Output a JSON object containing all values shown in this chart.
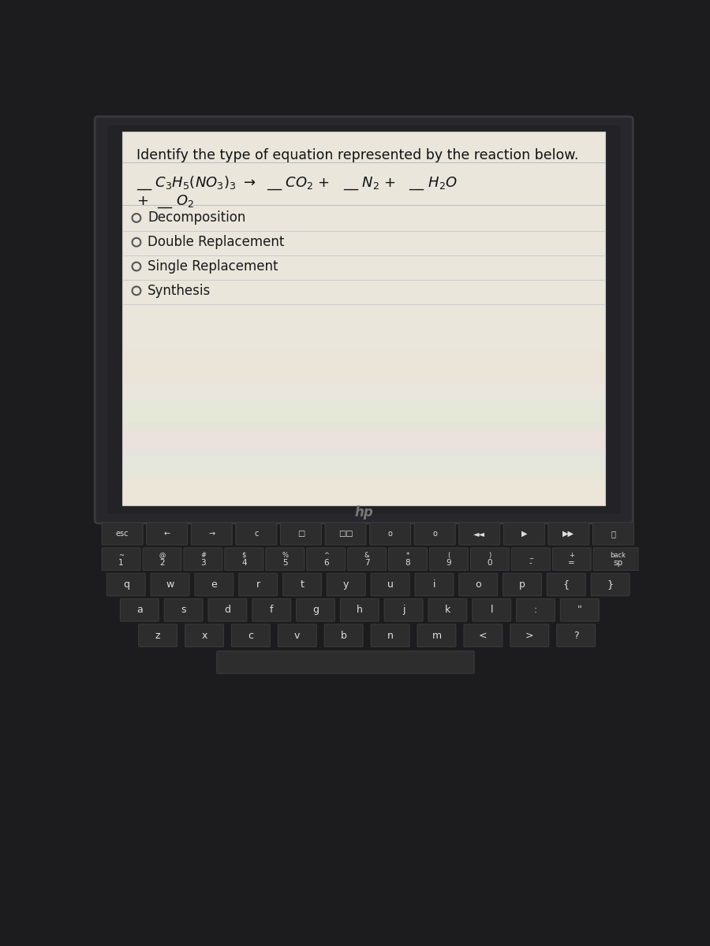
{
  "bg_color": "#1c1c1e",
  "screen_frame_color": "#2a2a2e",
  "panel_color": "#eae6dc",
  "title": "Identify the type of equation represented by the reaction below.",
  "choices": [
    "Decomposition",
    "Double Replacement",
    "Single Replacement",
    "Synthesis"
  ],
  "key_color": "#2d2d2d",
  "key_edge_color": "#3a3a3a",
  "key_text_color": "#e0e0e0"
}
